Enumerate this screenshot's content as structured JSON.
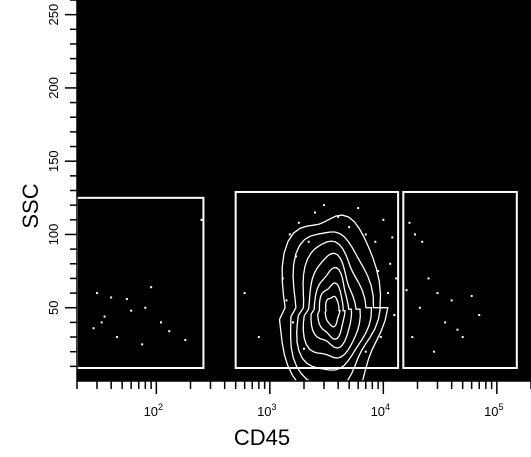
{
  "chart_data": {
    "type": "scatter",
    "subtype": "flow-cytometry-contour",
    "xlabel": "CD45",
    "ylabel": "SSC",
    "x_scale": "log",
    "xlim": [
      20,
      200000
    ],
    "ylim": [
      0,
      260
    ],
    "x_ticks": [
      {
        "value": 100,
        "label": "10",
        "exp": "2"
      },
      {
        "value": 1000,
        "label": "10",
        "exp": "3"
      },
      {
        "value": 10000,
        "label": "10",
        "exp": "4"
      },
      {
        "value": 100000,
        "label": "10",
        "exp": "5"
      }
    ],
    "y_ticks": [
      50,
      100,
      150,
      200,
      250
    ],
    "background": "#000000",
    "gate_color": "#ffffff",
    "grid": false,
    "gates": [
      {
        "x": [
          20,
          260
        ],
        "y": [
          0,
          125
        ]
      },
      {
        "x": [
          500,
          13500
        ],
        "y": [
          0,
          129
        ]
      },
      {
        "x": [
          15000,
          150000
        ],
        "y": [
          0,
          129
        ]
      }
    ],
    "contours": [
      {
        "cx": 3400,
        "cy": 50,
        "rx": 0.44,
        "ry": 66
      },
      {
        "cx": 3400,
        "cy": 50,
        "rx": 0.36,
        "ry": 54
      },
      {
        "cx": 3450,
        "cy": 50,
        "rx": 0.29,
        "ry": 44
      },
      {
        "cx": 3450,
        "cy": 49,
        "rx": 0.22,
        "ry": 35
      },
      {
        "cx": 3500,
        "cy": 49,
        "rx": 0.16,
        "ry": 26
      },
      {
        "cx": 3500,
        "cy": 48,
        "rx": 0.11,
        "ry": 18
      },
      {
        "cx": 3550,
        "cy": 48,
        "rx": 0.06,
        "ry": 10
      }
    ],
    "points": [
      [
        30,
        60
      ],
      [
        35,
        44
      ],
      [
        40,
        57
      ],
      [
        28,
        36
      ],
      [
        55,
        56
      ],
      [
        60,
        48
      ],
      [
        75,
        25
      ],
      [
        90,
        64
      ],
      [
        110,
        40
      ],
      [
        130,
        34
      ],
      [
        180,
        28
      ],
      [
        250,
        110
      ],
      [
        45,
        30
      ],
      [
        33,
        40
      ],
      [
        80,
        50
      ],
      [
        1500,
        100
      ],
      [
        1800,
        108
      ],
      [
        2200,
        95
      ],
      [
        2500,
        115
      ],
      [
        3000,
        120
      ],
      [
        4000,
        112
      ],
      [
        5000,
        105
      ],
      [
        6000,
        118
      ],
      [
        7000,
        100
      ],
      [
        8500,
        95
      ],
      [
        10000,
        110
      ],
      [
        12000,
        98
      ],
      [
        1300,
        70
      ],
      [
        1400,
        55
      ],
      [
        1600,
        40
      ],
      [
        11000,
        60
      ],
      [
        12500,
        45
      ],
      [
        9500,
        30
      ],
      [
        2000,
        22
      ],
      [
        7000,
        20
      ],
      [
        600,
        60
      ],
      [
        800,
        30
      ],
      [
        11500,
        80
      ],
      [
        13000,
        70
      ],
      [
        1700,
        85
      ],
      [
        9000,
        75
      ],
      [
        17000,
        108
      ],
      [
        19000,
        100
      ],
      [
        22000,
        95
      ],
      [
        25000,
        70
      ],
      [
        30000,
        60
      ],
      [
        35000,
        40
      ],
      [
        40000,
        55
      ],
      [
        45000,
        35
      ],
      [
        50000,
        30
      ],
      [
        60000,
        58
      ],
      [
        70000,
        45
      ],
      [
        16000,
        62
      ],
      [
        18000,
        30
      ],
      [
        21000,
        50
      ],
      [
        28000,
        20
      ]
    ]
  }
}
